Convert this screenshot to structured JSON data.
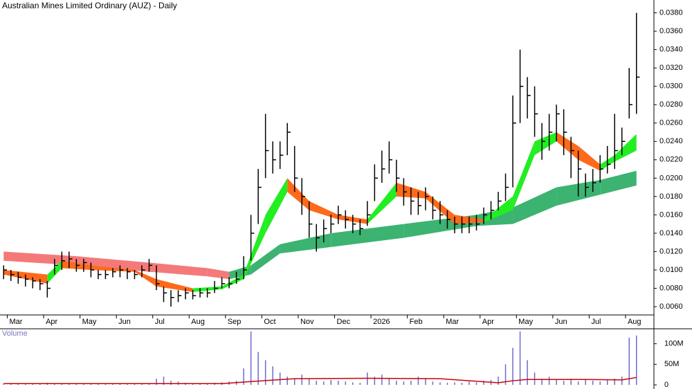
{
  "chart_data": {
    "type": "ohlc",
    "title": "Australian Mines Limited Ordinary (AUZ) - Daily",
    "categories": [
      null,
      "Mar",
      null,
      null,
      null,
      null,
      "Apr",
      null,
      null,
      null,
      null,
      "May",
      null,
      null,
      null,
      null,
      "Jun",
      null,
      null,
      null,
      null,
      "Jul",
      null,
      null,
      null,
      null,
      "Aug",
      null,
      null,
      null,
      null,
      "Sep",
      null,
      null,
      null,
      null,
      "Oct",
      null,
      null,
      null,
      null,
      "Nov",
      null,
      null,
      null,
      null,
      "Dec",
      null,
      null,
      null,
      null,
      "2026",
      null,
      null,
      null,
      null,
      "Feb",
      null,
      null,
      null,
      null,
      "Mar",
      null,
      null,
      null,
      null,
      "Apr",
      null,
      null,
      null,
      null,
      "May",
      null,
      null,
      null,
      null,
      "Jun",
      null,
      null,
      null,
      null,
      "Jul",
      null,
      null,
      null,
      null,
      "Aug",
      null
    ],
    "high": [
      0.0105,
      0.01,
      0.0098,
      0.0095,
      0.0092,
      0.009,
      0.0088,
      0.0112,
      0.012,
      0.012,
      0.0112,
      0.0112,
      0.0108,
      0.01,
      0.01,
      0.0102,
      0.0105,
      0.0102,
      0.01,
      0.0105,
      0.0112,
      0.0105,
      0.0082,
      0.0078,
      0.0078,
      0.008,
      0.0078,
      0.008,
      0.008,
      0.0088,
      0.0092,
      0.0092,
      0.0098,
      0.0115,
      0.016,
      0.021,
      0.027,
      0.024,
      0.024,
      0.026,
      0.0235,
      0.02,
      0.0175,
      0.015,
      0.0155,
      0.016,
      0.017,
      0.0165,
      0.016,
      0.0155,
      0.0175,
      0.0215,
      0.023,
      0.024,
      0.022,
      0.02,
      0.019,
      0.0185,
      0.019,
      0.018,
      0.0175,
      0.0165,
      0.0158,
      0.0158,
      0.0158,
      0.016,
      0.0168,
      0.0175,
      0.0185,
      0.0205,
      0.029,
      0.034,
      0.031,
      0.03,
      0.026,
      0.027,
      0.028,
      0.0275,
      0.0245,
      0.023,
      0.0205,
      0.021,
      0.0225,
      0.0235,
      0.027,
      0.0255,
      0.032,
      0.038
    ],
    "low": [
      0.009,
      0.0088,
      0.0085,
      0.0082,
      0.008,
      0.0078,
      0.007,
      0.0095,
      0.01,
      0.0102,
      0.0098,
      0.0098,
      0.0092,
      0.009,
      0.009,
      0.0092,
      0.0092,
      0.009,
      0.009,
      0.0092,
      0.0098,
      0.0078,
      0.0065,
      0.006,
      0.0065,
      0.0068,
      0.0068,
      0.007,
      0.007,
      0.0075,
      0.008,
      0.008,
      0.0085,
      0.009,
      0.011,
      0.015,
      0.02,
      0.0205,
      0.021,
      0.0225,
      0.0185,
      0.016,
      0.0135,
      0.012,
      0.013,
      0.014,
      0.015,
      0.0145,
      0.014,
      0.0138,
      0.0148,
      0.0175,
      0.0195,
      0.0205,
      0.0185,
      0.017,
      0.016,
      0.016,
      0.0165,
      0.0155,
      0.015,
      0.0145,
      0.014,
      0.014,
      0.014,
      0.0143,
      0.015,
      0.0155,
      0.0165,
      0.0175,
      0.019,
      0.026,
      0.0265,
      0.0245,
      0.022,
      0.023,
      0.024,
      0.0225,
      0.02,
      0.018,
      0.018,
      0.0185,
      0.0195,
      0.0205,
      0.021,
      0.0225,
      0.0265,
      0.027
    ],
    "close": [
      0.01,
      0.0095,
      0.0092,
      0.009,
      0.0088,
      0.0085,
      0.008,
      0.0105,
      0.011,
      0.0112,
      0.0105,
      0.0108,
      0.01,
      0.0095,
      0.0095,
      0.0098,
      0.01,
      0.0098,
      0.0095,
      0.01,
      0.0105,
      0.0085,
      0.0075,
      0.007,
      0.0072,
      0.0075,
      0.0072,
      0.0075,
      0.0075,
      0.008,
      0.0085,
      0.0085,
      0.009,
      0.01,
      0.014,
      0.019,
      0.023,
      0.022,
      0.0225,
      0.025,
      0.02,
      0.018,
      0.015,
      0.0135,
      0.0145,
      0.015,
      0.016,
      0.0155,
      0.015,
      0.0145,
      0.016,
      0.02,
      0.021,
      0.022,
      0.02,
      0.0185,
      0.0175,
      0.017,
      0.018,
      0.0165,
      0.016,
      0.0155,
      0.015,
      0.015,
      0.015,
      0.015,
      0.016,
      0.0165,
      0.0175,
      0.019,
      0.026,
      0.03,
      0.029,
      0.027,
      0.024,
      0.025,
      0.027,
      0.025,
      0.023,
      0.021,
      0.019,
      0.0195,
      0.021,
      0.0215,
      0.023,
      0.024,
      0.028,
      0.031
    ],
    "bar_color": "#000000",
    "ribbons": [
      {
        "x": [
          0,
          10,
          20,
          28,
          31,
          34,
          38,
          45,
          55,
          65,
          70,
          76,
          82,
          87
        ],
        "upper": [
          0.012,
          0.0115,
          0.0108,
          0.0102,
          0.0098,
          0.0105,
          0.0128,
          0.014,
          0.015,
          0.016,
          0.0168,
          0.019,
          0.0198,
          0.0208
        ],
        "lower": [
          0.011,
          0.0105,
          0.0098,
          0.0093,
          0.009,
          0.0095,
          0.0118,
          0.0125,
          0.0135,
          0.0148,
          0.015,
          0.017,
          0.0182,
          0.0192
        ],
        "up_color": "#3cb371",
        "down_color": "#f47a7a"
      },
      {
        "x": [
          0,
          6,
          8,
          12,
          18,
          21,
          26,
          30,
          33,
          36,
          39,
          42,
          46,
          50,
          54,
          58,
          62,
          66,
          70,
          73,
          76,
          79,
          82,
          84,
          87
        ],
        "upper": [
          0.01,
          0.0095,
          0.011,
          0.0105,
          0.01,
          0.009,
          0.008,
          0.0082,
          0.0095,
          0.016,
          0.02,
          0.0175,
          0.016,
          0.0155,
          0.0195,
          0.0185,
          0.016,
          0.0155,
          0.018,
          0.024,
          0.025,
          0.0235,
          0.0215,
          0.0225,
          0.0248
        ],
        "lower": [
          0.0095,
          0.0085,
          0.0102,
          0.01,
          0.0098,
          0.0082,
          0.0076,
          0.0079,
          0.009,
          0.014,
          0.0185,
          0.0165,
          0.0155,
          0.015,
          0.018,
          0.0178,
          0.015,
          0.0152,
          0.0165,
          0.0225,
          0.024,
          0.022,
          0.0208,
          0.0218,
          0.023
        ],
        "up_color": "#22ee22",
        "down_color": "#ff6a1a"
      }
    ],
    "ylim": [
      0.0051,
      0.0394
    ],
    "yticks": [
      {
        "value": 0.006,
        "label": "0.0060"
      },
      {
        "value": 0.008,
        "label": "0.0080"
      },
      {
        "value": 0.01,
        "label": "0.0100"
      },
      {
        "value": 0.012,
        "label": "0.0120"
      },
      {
        "value": 0.014,
        "label": "0.0140"
      },
      {
        "value": 0.016,
        "label": "0.0160"
      },
      {
        "value": 0.018,
        "label": "0.0180"
      },
      {
        "value": 0.02,
        "label": "0.0200"
      },
      {
        "value": 0.022,
        "label": "0.0220"
      },
      {
        "value": 0.024,
        "label": "0.0240"
      },
      {
        "value": 0.026,
        "label": "0.0260"
      },
      {
        "value": 0.028,
        "label": "0.0280"
      },
      {
        "value": 0.03,
        "label": "0.0300"
      },
      {
        "value": 0.032,
        "label": "0.0320"
      },
      {
        "value": 0.034,
        "label": "0.0340"
      },
      {
        "value": 0.036,
        "label": "0.0360"
      },
      {
        "value": 0.038,
        "label": "0.0380"
      }
    ],
    "volume": {
      "label": "Volume",
      "values": [
        3,
        2,
        2,
        4,
        2,
        3,
        5,
        4,
        3,
        3,
        2,
        2,
        3,
        2,
        3,
        2,
        2,
        2,
        3,
        2,
        3,
        15,
        20,
        10,
        8,
        5,
        4,
        4,
        3,
        5,
        6,
        8,
        10,
        40,
        130,
        80,
        60,
        45,
        30,
        20,
        15,
        25,
        15,
        10,
        8,
        12,
        10,
        8,
        6,
        5,
        30,
        20,
        25,
        15,
        10,
        8,
        10,
        20,
        15,
        8,
        6,
        5,
        6,
        5,
        8,
        6,
        10,
        12,
        20,
        50,
        90,
        130,
        60,
        30,
        15,
        20,
        12,
        10,
        15,
        8,
        12,
        10,
        8,
        12,
        15,
        20,
        115,
        120
      ],
      "color": "#6a6ad0",
      "average": {
        "x": [
          0,
          30,
          34,
          40,
          50,
          60,
          68,
          70,
          72,
          80,
          85,
          87
        ],
        "values": [
          3,
          3,
          8,
          15,
          16,
          15,
          5,
          10,
          13,
          13,
          12,
          18
        ],
        "color": "#cc0000"
      },
      "ylim": [
        0,
        128
      ],
      "yticks": [
        0,
        {
          "value": 50,
          "label": "50M"
        },
        {
          "value": 100,
          "label": "100M"
        }
      ]
    }
  }
}
